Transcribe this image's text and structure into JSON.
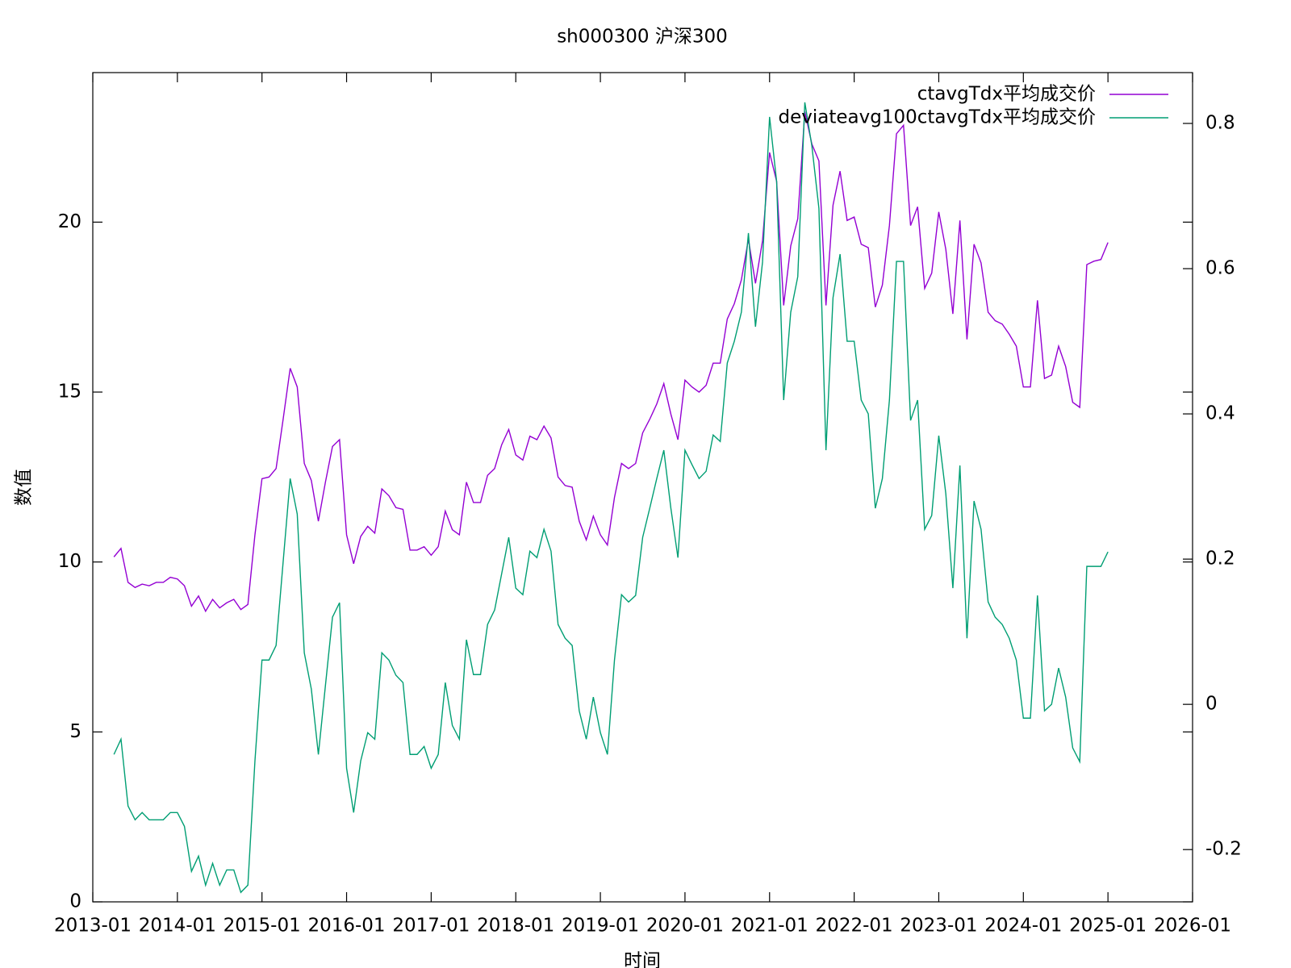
{
  "chart_data": {
    "type": "line",
    "title": "sh000300 沪深300",
    "xlabel": "时间",
    "ylabel": "数值",
    "x": [
      "2013-04",
      "2013-05",
      "2013-06",
      "2013-07",
      "2013-08",
      "2013-09",
      "2013-10",
      "2013-11",
      "2013-12",
      "2014-01",
      "2014-02",
      "2014-03",
      "2014-04",
      "2014-05",
      "2014-06",
      "2014-07",
      "2014-08",
      "2014-09",
      "2014-10",
      "2014-11",
      "2014-12",
      "2015-01",
      "2015-02",
      "2015-03",
      "2015-04",
      "2015-05",
      "2015-06",
      "2015-07",
      "2015-08",
      "2015-09",
      "2015-10",
      "2015-11",
      "2015-12",
      "2016-01",
      "2016-02",
      "2016-03",
      "2016-04",
      "2016-05",
      "2016-06",
      "2016-07",
      "2016-08",
      "2016-09",
      "2016-10",
      "2016-11",
      "2016-12",
      "2017-01",
      "2017-02",
      "2017-03",
      "2017-04",
      "2017-05",
      "2017-06",
      "2017-07",
      "2017-08",
      "2017-09",
      "2017-10",
      "2017-11",
      "2017-12",
      "2018-01",
      "2018-02",
      "2018-03",
      "2018-04",
      "2018-05",
      "2018-06",
      "2018-07",
      "2018-08",
      "2018-09",
      "2018-10",
      "2018-11",
      "2018-12",
      "2019-01",
      "2019-02",
      "2019-03",
      "2019-04",
      "2019-05",
      "2019-06",
      "2019-07",
      "2019-08",
      "2019-09",
      "2019-10",
      "2019-11",
      "2019-12",
      "2020-01",
      "2020-02",
      "2020-03",
      "2020-04",
      "2020-05",
      "2020-06",
      "2020-07",
      "2020-08",
      "2020-09",
      "2020-10",
      "2020-11",
      "2020-12",
      "2021-01",
      "2021-02",
      "2021-03",
      "2021-04",
      "2021-05",
      "2021-06",
      "2021-07",
      "2021-08",
      "2021-09",
      "2021-10",
      "2021-11",
      "2021-12",
      "2022-01",
      "2022-02",
      "2022-03",
      "2022-04",
      "2022-05",
      "2022-06",
      "2022-07",
      "2022-08",
      "2022-09",
      "2022-10",
      "2022-11",
      "2022-12",
      "2023-01",
      "2023-02",
      "2023-03",
      "2023-04",
      "2023-05",
      "2023-06",
      "2023-07",
      "2023-08",
      "2023-09",
      "2023-10",
      "2023-11",
      "2023-12",
      "2024-01",
      "2024-02",
      "2024-03",
      "2024-04",
      "2024-05",
      "2024-06",
      "2024-07",
      "2024-08",
      "2024-09",
      "2024-10",
      "2024-11",
      "2024-12",
      "2025-01"
    ],
    "series": [
      {
        "name": "ctavgTdx平均成交价",
        "color": "#9400d3",
        "values": [
          10.15,
          10.4,
          9.4,
          9.25,
          9.35,
          9.3,
          9.4,
          9.4,
          9.55,
          9.5,
          9.3,
          8.7,
          9.0,
          8.55,
          8.9,
          8.65,
          8.8,
          8.9,
          8.6,
          8.75,
          10.8,
          12.45,
          12.5,
          12.75,
          14.2,
          15.7,
          15.15,
          12.9,
          12.4,
          11.2,
          12.35,
          13.4,
          13.6,
          10.8,
          9.95,
          10.75,
          11.05,
          10.85,
          12.15,
          11.95,
          11.6,
          11.55,
          10.35,
          10.35,
          10.45,
          10.2,
          10.45,
          11.5,
          10.95,
          10.8,
          12.35,
          11.75,
          11.75,
          12.55,
          12.75,
          13.45,
          13.9,
          13.15,
          13.0,
          13.7,
          13.6,
          14.0,
          13.65,
          12.5,
          12.25,
          12.2,
          11.2,
          10.65,
          11.35,
          10.8,
          10.5,
          11.9,
          12.9,
          12.75,
          12.9,
          13.8,
          14.2,
          14.65,
          15.25,
          14.35,
          13.6,
          15.35,
          15.15,
          15.0,
          15.2,
          15.85,
          15.85,
          17.15,
          17.6,
          18.3,
          19.5,
          18.2,
          19.45,
          22.05,
          21.2,
          17.55,
          19.3,
          20.1,
          23.25,
          22.3,
          21.8,
          17.55,
          20.5,
          21.5,
          20.05,
          20.15,
          19.35,
          19.25,
          17.5,
          18.15,
          19.9,
          22.6,
          22.85,
          19.9,
          20.45,
          18.05,
          18.5,
          20.3,
          19.2,
          17.3,
          20.05,
          16.55,
          19.35,
          18.8,
          17.35,
          17.1,
          17.0,
          16.7,
          16.35,
          15.15,
          15.15,
          17.7,
          15.4,
          15.5,
          16.35,
          15.75,
          14.7,
          14.55,
          18.75,
          18.85,
          18.9,
          19.4
        ]
      },
      {
        "name": "deviateavg100ctavgTdx平均成交价",
        "color": "#009e73",
        "axis": "y2",
        "values": [
          -0.069,
          -0.048,
          -0.14,
          -0.159,
          -0.149,
          -0.159,
          -0.159,
          -0.159,
          -0.149,
          -0.149,
          -0.168,
          -0.23,
          -0.209,
          -0.249,
          -0.219,
          -0.249,
          -0.228,
          -0.228,
          -0.259,
          -0.249,
          -0.078,
          0.061,
          0.061,
          0.081,
          0.196,
          0.311,
          0.262,
          0.071,
          0.021,
          -0.069,
          0.026,
          0.12,
          0.14,
          -0.088,
          -0.149,
          -0.078,
          -0.039,
          -0.048,
          0.071,
          0.061,
          0.04,
          0.03,
          -0.069,
          -0.069,
          -0.058,
          -0.088,
          -0.069,
          0.03,
          -0.029,
          -0.048,
          0.089,
          0.041,
          0.041,
          0.11,
          0.13,
          0.18,
          0.23,
          0.16,
          0.151,
          0.211,
          0.202,
          0.241,
          0.211,
          0.11,
          0.091,
          0.081,
          -0.009,
          -0.048,
          0.01,
          -0.039,
          -0.069,
          0.061,
          0.151,
          0.141,
          0.15,
          0.23,
          0.27,
          0.311,
          0.35,
          0.27,
          0.202,
          0.35,
          0.33,
          0.311,
          0.321,
          0.371,
          0.362,
          0.47,
          0.5,
          0.54,
          0.649,
          0.52,
          0.609,
          0.809,
          0.72,
          0.419,
          0.54,
          0.589,
          0.829,
          0.769,
          0.683,
          0.35,
          0.56,
          0.62,
          0.5,
          0.5,
          0.419,
          0.4,
          0.27,
          0.311,
          0.419,
          0.61,
          0.61,
          0.391,
          0.419,
          0.241,
          0.26,
          0.37,
          0.29,
          0.16,
          0.329,
          0.091,
          0.28,
          0.241,
          0.141,
          0.12,
          0.11,
          0.091,
          0.061,
          -0.019,
          -0.019,
          0.15,
          -0.009,
          0.0,
          0.05,
          0.01,
          -0.06,
          -0.079,
          0.19,
          0.19,
          0.19,
          0.21
        ]
      }
    ],
    "xlim": [
      "2013-01",
      "2026-01"
    ],
    "xticks": [
      "2013-01",
      "2014-01",
      "2015-01",
      "2016-01",
      "2017-01",
      "2018-01",
      "2019-01",
      "2020-01",
      "2021-01",
      "2022-01",
      "2023-01",
      "2024-01",
      "2025-01",
      "2026-01"
    ],
    "ylim": [
      0,
      24.4
    ],
    "yticks": [
      0,
      5,
      10,
      15,
      20
    ],
    "y2lim": [
      -0.272,
      0.87
    ],
    "y2ticks": [
      -0.2,
      0,
      0.2,
      0.4,
      0.6,
      0.8
    ],
    "legend": "top right",
    "grid": false
  }
}
